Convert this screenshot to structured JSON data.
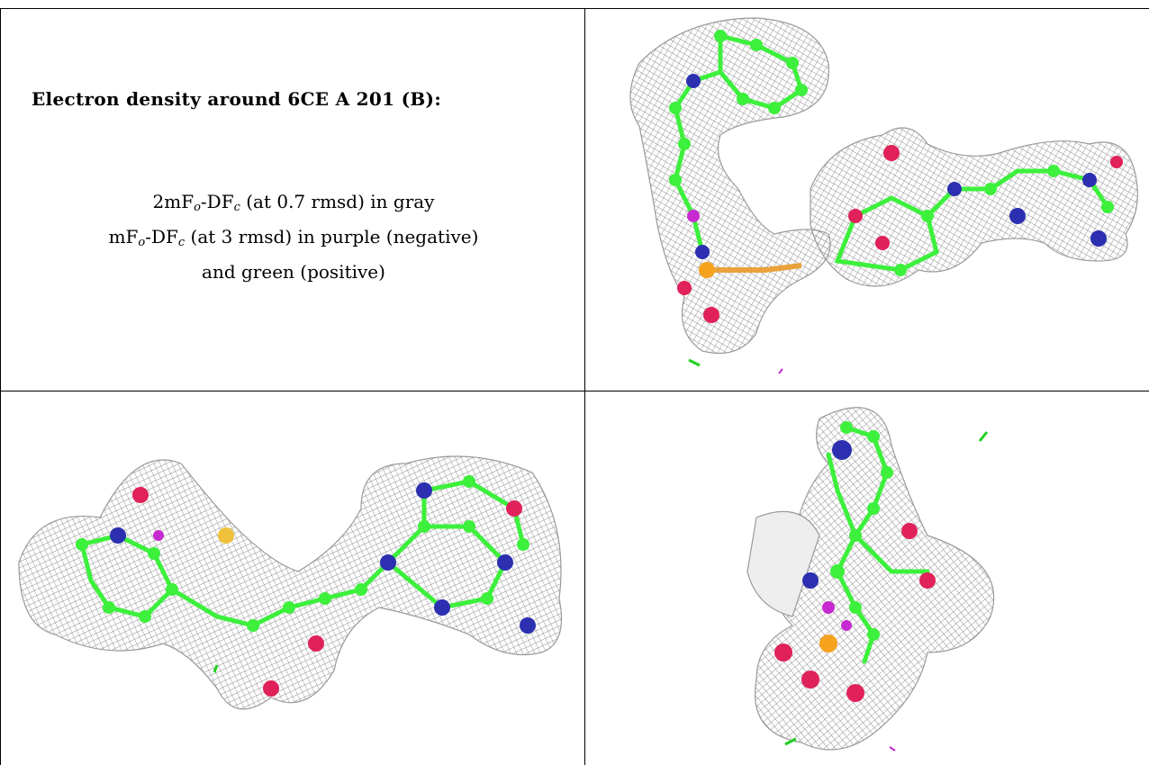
{
  "title": "Electron density around 6CE A 201 (B):",
  "legend": {
    "line1": {
      "pre": "2mF",
      "sub1": "o",
      "mid": "-DF",
      "sub2": "c",
      "post": " (at 0.7 rmsd) in gray"
    },
    "line2": {
      "pre": "mF",
      "sub1": "o",
      "mid": "-DF",
      "sub2": "c",
      "post": " (at 3 rmsd) in purple (negative)"
    },
    "line3": "and green (positive)"
  },
  "colors": {
    "mesh": "#8c8c8c",
    "carbon": "#3cf03c",
    "nitrogen": "#2b2fb0",
    "oxygen": "#e0215a",
    "phosphorus": "#f5a21e",
    "negative_density": "#c62ad0",
    "positive_density": "#1fd11f"
  },
  "panels": [
    {
      "view": "top-right"
    },
    {
      "view": "bottom-left"
    },
    {
      "view": "bottom-right"
    }
  ]
}
